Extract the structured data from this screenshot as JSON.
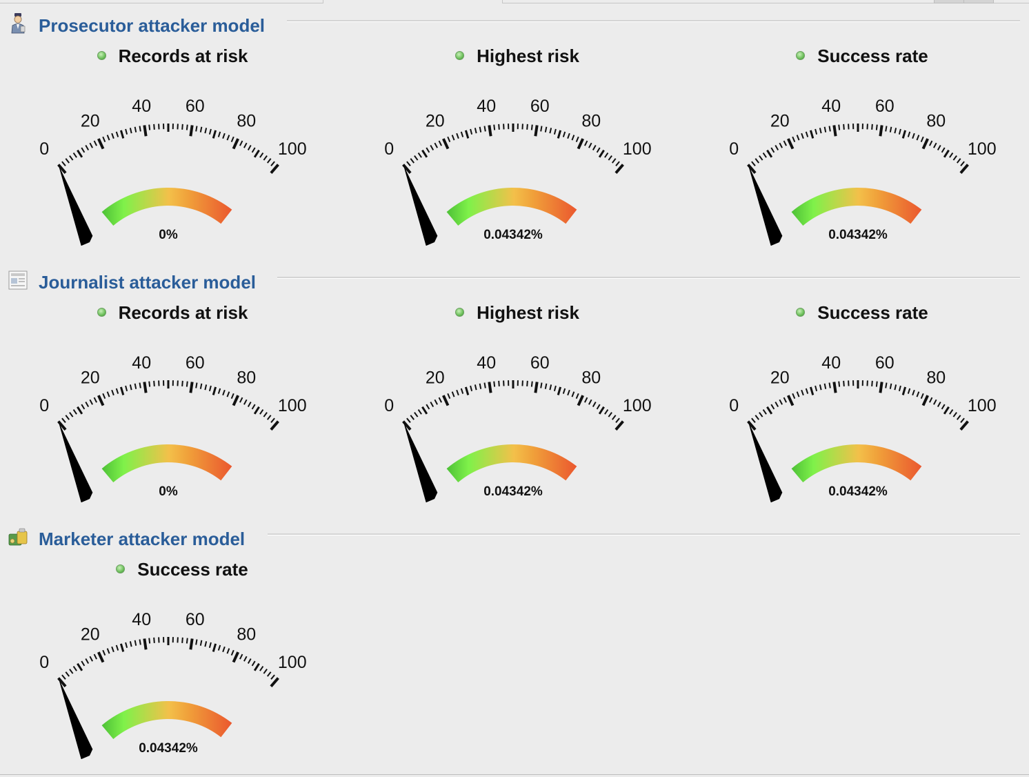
{
  "colors": {
    "section_title": "#2a5d99",
    "status_dot": "#6cbf5a",
    "needle": "#000000",
    "arc_gradient": [
      "#2fa32b",
      "#7ff14a",
      "#f3c04a",
      "#f0a03a",
      "#e83a2a"
    ]
  },
  "dial": {
    "min": 0,
    "max": 100,
    "ticks": [
      "0",
      "20",
      "40",
      "60",
      "80",
      "100"
    ]
  },
  "sections": [
    {
      "title": "Prosecutor attacker model",
      "icon": "prosecutor-icon",
      "gauges": [
        {
          "label": "Records at risk",
          "value": 0,
          "value_text": "0%"
        },
        {
          "label": "Highest risk",
          "value": 0.04342,
          "value_text": "0.04342%"
        },
        {
          "label": "Success rate",
          "value": 0.04342,
          "value_text": "0.04342%"
        }
      ]
    },
    {
      "title": "Journalist attacker model",
      "icon": "journalist-icon",
      "gauges": [
        {
          "label": "Records at risk",
          "value": 0,
          "value_text": "0%"
        },
        {
          "label": "Highest risk",
          "value": 0.04342,
          "value_text": "0.04342%"
        },
        {
          "label": "Success rate",
          "value": 0.04342,
          "value_text": "0.04342%"
        }
      ]
    },
    {
      "title": "Marketer attacker model",
      "icon": "marketer-icon",
      "gauges": [
        {
          "label": "Success rate",
          "value": 0.04342,
          "value_text": "0.04342%"
        }
      ]
    }
  ]
}
